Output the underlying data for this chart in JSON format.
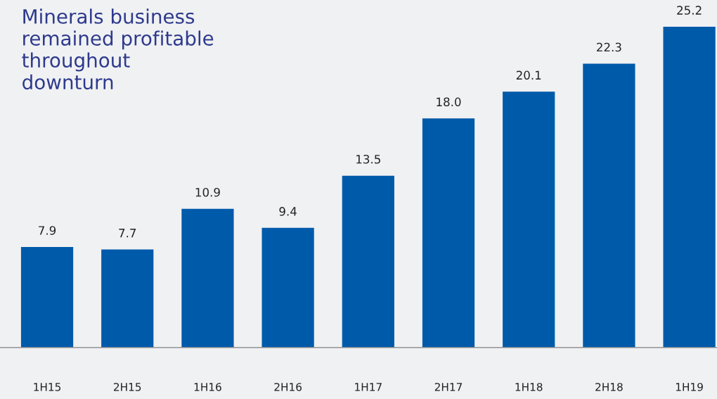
{
  "chart_data": {
    "type": "bar",
    "title": "Minerals business\nremained profitable\nthroughout\ndownturn",
    "categories": [
      "1H15",
      "2H15",
      "1H16",
      "2H16",
      "1H17",
      "2H17",
      "1H18",
      "2H18",
      "1H19"
    ],
    "values": [
      7.9,
      7.7,
      10.9,
      9.4,
      13.5,
      18.0,
      20.1,
      22.3,
      25.2
    ],
    "value_labels": [
      "7.9",
      "7.7",
      "10.9",
      "9.4",
      "13.5",
      "18.0",
      "20.1",
      "22.3",
      "25.2"
    ],
    "color": "#005aaa",
    "grid": false,
    "legend": false
  }
}
